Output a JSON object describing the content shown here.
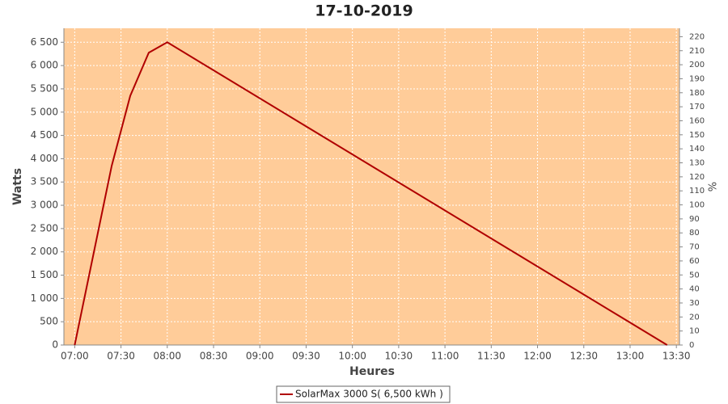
{
  "chart_data": {
    "type": "line",
    "title": "17-10-2019",
    "x_label": "Heures",
    "y_label": "Watts",
    "y2_label": "%",
    "x": [
      "07:00",
      "07:24",
      "07:36",
      "07:48",
      "08:00",
      "13:24"
    ],
    "series": [
      {
        "name": "SolarMax 3000 S( 6,500 kWh )",
        "color": "#b00000",
        "values": [
          0,
          3850,
          5350,
          6275,
          6500,
          0
        ]
      }
    ],
    "xlim": [
      "06:53",
      "13:32"
    ],
    "xticks": [
      "07:00",
      "07:30",
      "08:00",
      "08:30",
      "09:00",
      "09:30",
      "10:00",
      "10:30",
      "11:00",
      "11:30",
      "12:00",
      "12:30",
      "13:00",
      "13:30"
    ],
    "ylim": [
      0,
      6800
    ],
    "yticks": [
      0,
      500,
      {
        "value": 1000,
        "label": "1 000"
      },
      {
        "value": 1500,
        "label": "1 500"
      },
      {
        "value": 2000,
        "label": "2 000"
      },
      {
        "value": 2500,
        "label": "2 500"
      },
      {
        "value": 3000,
        "label": "3 000"
      },
      {
        "value": 3500,
        "label": "3 500"
      },
      {
        "value": 4000,
        "label": "4 000"
      },
      {
        "value": 4500,
        "label": "4 500"
      },
      {
        "value": 5000,
        "label": "5 000"
      },
      {
        "value": 5500,
        "label": "5 500"
      },
      {
        "value": 6000,
        "label": "6 000"
      },
      {
        "value": 6500,
        "label": "6 500"
      }
    ],
    "y2lim": [
      0,
      226
    ],
    "y2ticks": [
      0,
      10,
      20,
      30,
      40,
      50,
      60,
      70,
      80,
      90,
      100,
      110,
      120,
      130,
      140,
      150,
      160,
      170,
      180,
      190,
      200,
      210,
      220
    ],
    "grid": true,
    "background": "#ffcc99",
    "legend": "bottom"
  }
}
